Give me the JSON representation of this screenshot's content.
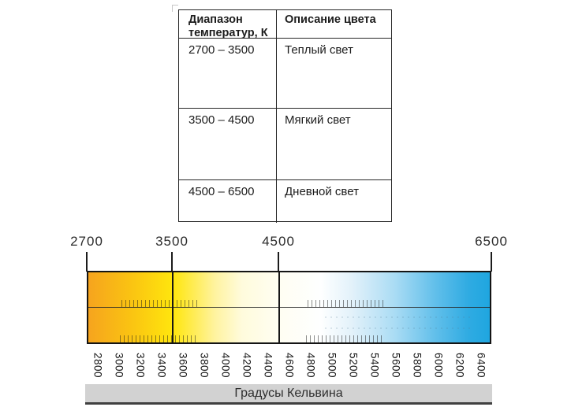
{
  "table": {
    "col1_header": "Диапазон температур, К",
    "col2_header": "Описание цвета",
    "rows": [
      {
        "range": "2700 – 3500",
        "description": "Теплый свет"
      },
      {
        "range": "3500 – 4500",
        "description": "Мягкий свет"
      },
      {
        "range": "4500 – 6500",
        "description": "Дневной свет"
      }
    ]
  },
  "scale": {
    "min": 2700,
    "max": 6500,
    "major_labels": [
      "2700",
      "3500",
      "4500",
      "6500"
    ],
    "major_values": [
      2700,
      3500,
      4500,
      6500
    ],
    "inner_dividers": [
      3500,
      4500
    ],
    "tick_values": [
      2800,
      3000,
      3200,
      3400,
      3600,
      3800,
      4000,
      4200,
      4400,
      4600,
      4800,
      5000,
      5200,
      5400,
      5600,
      5800,
      6000,
      6200,
      6400
    ],
    "axis_title": "Градусы Кельвина",
    "gradient_stops": [
      {
        "value": 2700,
        "color": "#f6a41e"
      },
      {
        "value": 3100,
        "color": "#fac312"
      },
      {
        "value": 3500,
        "color": "#ffe60d"
      },
      {
        "value": 3700,
        "color": "#ffec55"
      },
      {
        "value": 3900,
        "color": "#fff3a0"
      },
      {
        "value": 4150,
        "color": "#fffbdc"
      },
      {
        "value": 4500,
        "color": "#fffef2"
      },
      {
        "value": 4900,
        "color": "#feffff"
      },
      {
        "value": 5200,
        "color": "#e2f1fa"
      },
      {
        "value": 5600,
        "color": "#aadcf4"
      },
      {
        "value": 6000,
        "color": "#5fbeea"
      },
      {
        "value": 6300,
        "color": "#2fabe2"
      },
      {
        "value": 6500,
        "color": "#1fa6e0"
      }
    ],
    "colors": {
      "warm": "#f6a41e",
      "neutral": "#ffffff",
      "cool": "#1fa6e0",
      "axis_bar_bg": "#d2d2d2",
      "axis_bar_border": "#404040"
    }
  }
}
